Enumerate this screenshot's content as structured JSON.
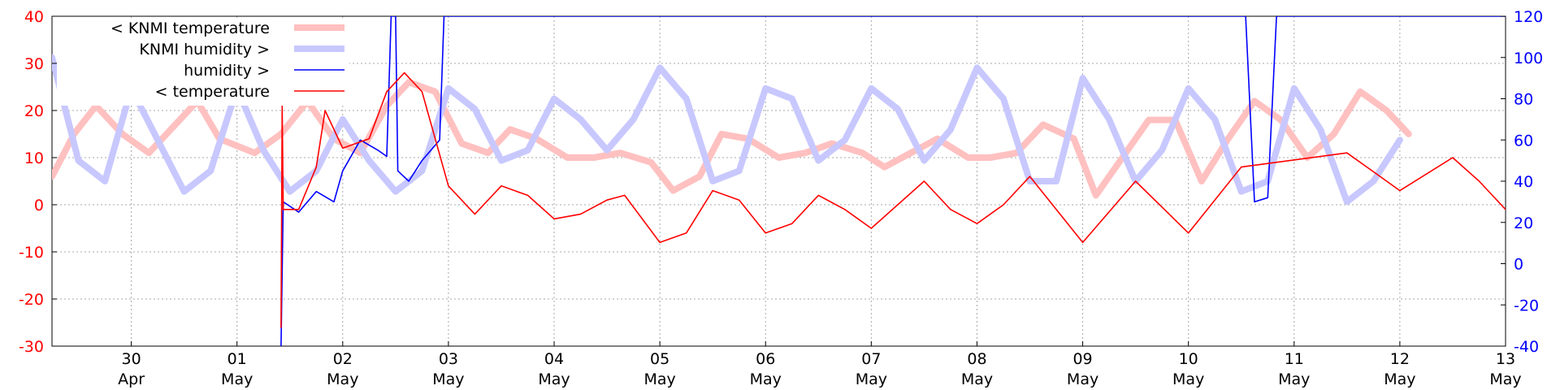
{
  "chart_data": {
    "type": "line",
    "left_axis": {
      "ylim": [
        -30,
        40
      ],
      "ticks": [
        40,
        30,
        20,
        10,
        0,
        -10,
        -20,
        -30
      ],
      "color": "#ff0000"
    },
    "right_axis": {
      "ylim": [
        -40,
        120
      ],
      "ticks": [
        120,
        100,
        80,
        60,
        40,
        20,
        0,
        -20,
        -40
      ],
      "color": "#0000ff"
    },
    "x_axis": {
      "range": [
        "2025-04-29T06:00",
        "2025-05-13T00:00"
      ],
      "ticks": [
        {
          "x": "2025-04-30T00:00",
          "day": "30",
          "month": "Apr"
        },
        {
          "x": "2025-05-01T00:00",
          "day": "01",
          "month": "May"
        },
        {
          "x": "2025-05-02T00:00",
          "day": "02",
          "month": "May"
        },
        {
          "x": "2025-05-03T00:00",
          "day": "03",
          "month": "May"
        },
        {
          "x": "2025-05-04T00:00",
          "day": "04",
          "month": "May"
        },
        {
          "x": "2025-05-05T00:00",
          "day": "05",
          "month": "May"
        },
        {
          "x": "2025-05-06T00:00",
          "day": "06",
          "month": "May"
        },
        {
          "x": "2025-05-07T00:00",
          "day": "07",
          "month": "May"
        },
        {
          "x": "2025-05-08T00:00",
          "day": "08",
          "month": "May"
        },
        {
          "x": "2025-05-09T00:00",
          "day": "09",
          "month": "May"
        },
        {
          "x": "2025-05-10T00:00",
          "day": "10",
          "month": "May"
        },
        {
          "x": "2025-05-11T00:00",
          "day": "11",
          "month": "May"
        },
        {
          "x": "2025-05-12T00:00",
          "day": "12",
          "month": "May"
        },
        {
          "x": "2025-05-13T00:00",
          "day": "13",
          "month": "May"
        }
      ]
    },
    "grid": true,
    "legend_position": "top-left",
    "series": [
      {
        "name": "< KNMI temperature",
        "axis": "left",
        "color": "#ffc0c0",
        "style": "thick",
        "points": [
          [
            "2025-04-29T06:00",
            6
          ],
          [
            "2025-04-29T11:00",
            15
          ],
          [
            "2025-04-29T16:00",
            21
          ],
          [
            "2025-04-29T22:00",
            15
          ],
          [
            "2025-04-30T04:00",
            11
          ],
          [
            "2025-04-30T10:00",
            17
          ],
          [
            "2025-04-30T15:00",
            22
          ],
          [
            "2025-04-30T20:00",
            14
          ],
          [
            "2025-05-01T04:00",
            11
          ],
          [
            "2025-05-01T10:00",
            15
          ],
          [
            "2025-05-01T16:00",
            22
          ],
          [
            "2025-05-01T22:00",
            14
          ],
          [
            "2025-05-02T04:00",
            11
          ],
          [
            "2025-05-02T10:00",
            21
          ],
          [
            "2025-05-02T15:00",
            26
          ],
          [
            "2025-05-02T21:00",
            24
          ],
          [
            "2025-05-03T03:00",
            13
          ],
          [
            "2025-05-03T09:00",
            11
          ],
          [
            "2025-05-03T14:00",
            16
          ],
          [
            "2025-05-03T20:00",
            14
          ],
          [
            "2025-05-04T03:00",
            10
          ],
          [
            "2025-05-04T09:00",
            10
          ],
          [
            "2025-05-04T15:00",
            11
          ],
          [
            "2025-05-04T22:00",
            9
          ],
          [
            "2025-05-05T03:00",
            3
          ],
          [
            "2025-05-05T09:00",
            6
          ],
          [
            "2025-05-05T14:00",
            15
          ],
          [
            "2025-05-05T20:00",
            14
          ],
          [
            "2025-05-06T03:00",
            10
          ],
          [
            "2025-05-06T09:00",
            11
          ],
          [
            "2025-05-06T15:00",
            13
          ],
          [
            "2025-05-06T22:00",
            11
          ],
          [
            "2025-05-07T03:00",
            8
          ],
          [
            "2025-05-07T09:00",
            11
          ],
          [
            "2025-05-07T15:00",
            14
          ],
          [
            "2025-05-07T22:00",
            10
          ],
          [
            "2025-05-08T03:00",
            10
          ],
          [
            "2025-05-08T09:00",
            11
          ],
          [
            "2025-05-08T15:00",
            17
          ],
          [
            "2025-05-08T22:00",
            14
          ],
          [
            "2025-05-09T03:00",
            2
          ],
          [
            "2025-05-09T09:00",
            10
          ],
          [
            "2025-05-09T15:00",
            18
          ],
          [
            "2025-05-09T21:00",
            18
          ],
          [
            "2025-05-10T03:00",
            5
          ],
          [
            "2025-05-10T09:00",
            14
          ],
          [
            "2025-05-10T15:00",
            22
          ],
          [
            "2025-05-10T21:00",
            18
          ],
          [
            "2025-05-11T03:00",
            10
          ],
          [
            "2025-05-11T09:00",
            15
          ],
          [
            "2025-05-11T15:00",
            24
          ],
          [
            "2025-05-11T21:00",
            20
          ],
          [
            "2025-05-12T02:00",
            15
          ]
        ]
      },
      {
        "name": "KNMI humidity >",
        "axis": "right",
        "color": "#c8c8ff",
        "style": "thick",
        "points": [
          [
            "2025-04-29T06:00",
            100
          ],
          [
            "2025-04-29T12:00",
            50
          ],
          [
            "2025-04-29T18:00",
            40
          ],
          [
            "2025-04-30T00:00",
            85
          ],
          [
            "2025-04-30T06:00",
            60
          ],
          [
            "2025-04-30T12:00",
            35
          ],
          [
            "2025-04-30T18:00",
            45
          ],
          [
            "2025-05-01T00:00",
            85
          ],
          [
            "2025-05-01T06:00",
            55
          ],
          [
            "2025-05-01T12:00",
            35
          ],
          [
            "2025-05-01T18:00",
            45
          ],
          [
            "2025-05-02T00:00",
            70
          ],
          [
            "2025-05-02T06:00",
            50
          ],
          [
            "2025-05-02T12:00",
            35
          ],
          [
            "2025-05-02T18:00",
            45
          ],
          [
            "2025-05-03T00:00",
            85
          ],
          [
            "2025-05-03T06:00",
            75
          ],
          [
            "2025-05-03T12:00",
            50
          ],
          [
            "2025-05-03T18:00",
            55
          ],
          [
            "2025-05-04T00:00",
            80
          ],
          [
            "2025-05-04T06:00",
            70
          ],
          [
            "2025-05-04T12:00",
            55
          ],
          [
            "2025-05-04T18:00",
            70
          ],
          [
            "2025-05-05T00:00",
            95
          ],
          [
            "2025-05-05T06:00",
            80
          ],
          [
            "2025-05-05T12:00",
            40
          ],
          [
            "2025-05-05T18:00",
            45
          ],
          [
            "2025-05-06T00:00",
            85
          ],
          [
            "2025-05-06T06:00",
            80
          ],
          [
            "2025-05-06T12:00",
            50
          ],
          [
            "2025-05-06T18:00",
            60
          ],
          [
            "2025-05-07T00:00",
            85
          ],
          [
            "2025-05-07T06:00",
            75
          ],
          [
            "2025-05-07T12:00",
            50
          ],
          [
            "2025-05-07T18:00",
            65
          ],
          [
            "2025-05-08T00:00",
            95
          ],
          [
            "2025-05-08T06:00",
            80
          ],
          [
            "2025-05-08T12:00",
            40
          ],
          [
            "2025-05-08T18:00",
            40
          ],
          [
            "2025-05-09T00:00",
            90
          ],
          [
            "2025-05-09T06:00",
            70
          ],
          [
            "2025-05-09T12:00",
            40
          ],
          [
            "2025-05-09T18:00",
            55
          ],
          [
            "2025-05-10T00:00",
            85
          ],
          [
            "2025-05-10T06:00",
            70
          ],
          [
            "2025-05-10T12:00",
            35
          ],
          [
            "2025-05-10T18:00",
            40
          ],
          [
            "2025-05-11T00:00",
            85
          ],
          [
            "2025-05-11T06:00",
            65
          ],
          [
            "2025-05-11T12:00",
            30
          ],
          [
            "2025-05-11T18:00",
            40
          ],
          [
            "2025-05-12T00:00",
            60
          ]
        ]
      },
      {
        "name": "humidity >",
        "axis": "right",
        "color": "#0000ff",
        "style": "thin",
        "points": [
          [
            "2025-05-01T10:00",
            -40
          ],
          [
            "2025-05-01T10:30",
            30
          ],
          [
            "2025-05-01T14:00",
            25
          ],
          [
            "2025-05-01T18:00",
            35
          ],
          [
            "2025-05-01T22:00",
            30
          ],
          [
            "2025-05-02T00:00",
            45
          ],
          [
            "2025-05-02T04:00",
            60
          ],
          [
            "2025-05-02T08:00",
            55
          ],
          [
            "2025-05-02T10:00",
            52
          ],
          [
            "2025-05-02T11:00",
            120
          ],
          [
            "2025-05-02T12:00",
            120
          ],
          [
            "2025-05-02T12:30",
            45
          ],
          [
            "2025-05-02T15:00",
            40
          ],
          [
            "2025-05-02T18:00",
            50
          ],
          [
            "2025-05-02T22:00",
            60
          ],
          [
            "2025-05-02T23:00",
            120
          ],
          [
            "2025-05-10T13:00",
            120
          ],
          [
            "2025-05-10T15:00",
            30
          ],
          [
            "2025-05-10T18:00",
            32
          ],
          [
            "2025-05-10T20:00",
            120
          ],
          [
            "2025-05-13T00:00",
            120
          ]
        ]
      },
      {
        "name": "< temperature",
        "axis": "left",
        "color": "#ff0000",
        "style": "thin",
        "points": [
          [
            "2025-05-01T10:00",
            -26
          ],
          [
            "2025-05-01T10:15",
            21
          ],
          [
            "2025-05-01T10:30",
            -1
          ],
          [
            "2025-05-01T14:00",
            -1
          ],
          [
            "2025-05-01T18:00",
            8
          ],
          [
            "2025-05-01T20:00",
            20
          ],
          [
            "2025-05-02T00:00",
            12
          ],
          [
            "2025-05-02T06:00",
            14
          ],
          [
            "2025-05-02T10:00",
            24
          ],
          [
            "2025-05-02T14:00",
            28
          ],
          [
            "2025-05-02T18:00",
            24
          ],
          [
            "2025-05-03T00:00",
            4
          ],
          [
            "2025-05-03T06:00",
            -2
          ],
          [
            "2025-05-03T12:00",
            4
          ],
          [
            "2025-05-03T18:00",
            2
          ],
          [
            "2025-05-04T00:00",
            -3
          ],
          [
            "2025-05-04T06:00",
            -2
          ],
          [
            "2025-05-04T12:00",
            1
          ],
          [
            "2025-05-04T16:00",
            2
          ],
          [
            "2025-05-05T00:00",
            -8
          ],
          [
            "2025-05-05T06:00",
            -6
          ],
          [
            "2025-05-05T12:00",
            3
          ],
          [
            "2025-05-05T18:00",
            1
          ],
          [
            "2025-05-06T00:00",
            -6
          ],
          [
            "2025-05-06T06:00",
            -4
          ],
          [
            "2025-05-06T12:00",
            2
          ],
          [
            "2025-05-06T18:00",
            -1
          ],
          [
            "2025-05-07T00:00",
            -5
          ],
          [
            "2025-05-07T06:00",
            0
          ],
          [
            "2025-05-07T12:00",
            5
          ],
          [
            "2025-05-07T18:00",
            -1
          ],
          [
            "2025-05-08T00:00",
            -4
          ],
          [
            "2025-05-08T06:00",
            0
          ],
          [
            "2025-05-08T12:00",
            6
          ],
          [
            "2025-05-09T00:00",
            -8
          ],
          [
            "2025-05-09T12:00",
            5
          ],
          [
            "2025-05-10T00:00",
            -6
          ],
          [
            "2025-05-10T12:00",
            8
          ],
          [
            "2025-05-11T12:00",
            11
          ],
          [
            "2025-05-11T18:00",
            7
          ],
          [
            "2025-05-12T00:00",
            3
          ],
          [
            "2025-05-12T12:00",
            10
          ],
          [
            "2025-05-12T18:00",
            5
          ],
          [
            "2025-05-13T00:00",
            -1
          ]
        ]
      }
    ]
  }
}
